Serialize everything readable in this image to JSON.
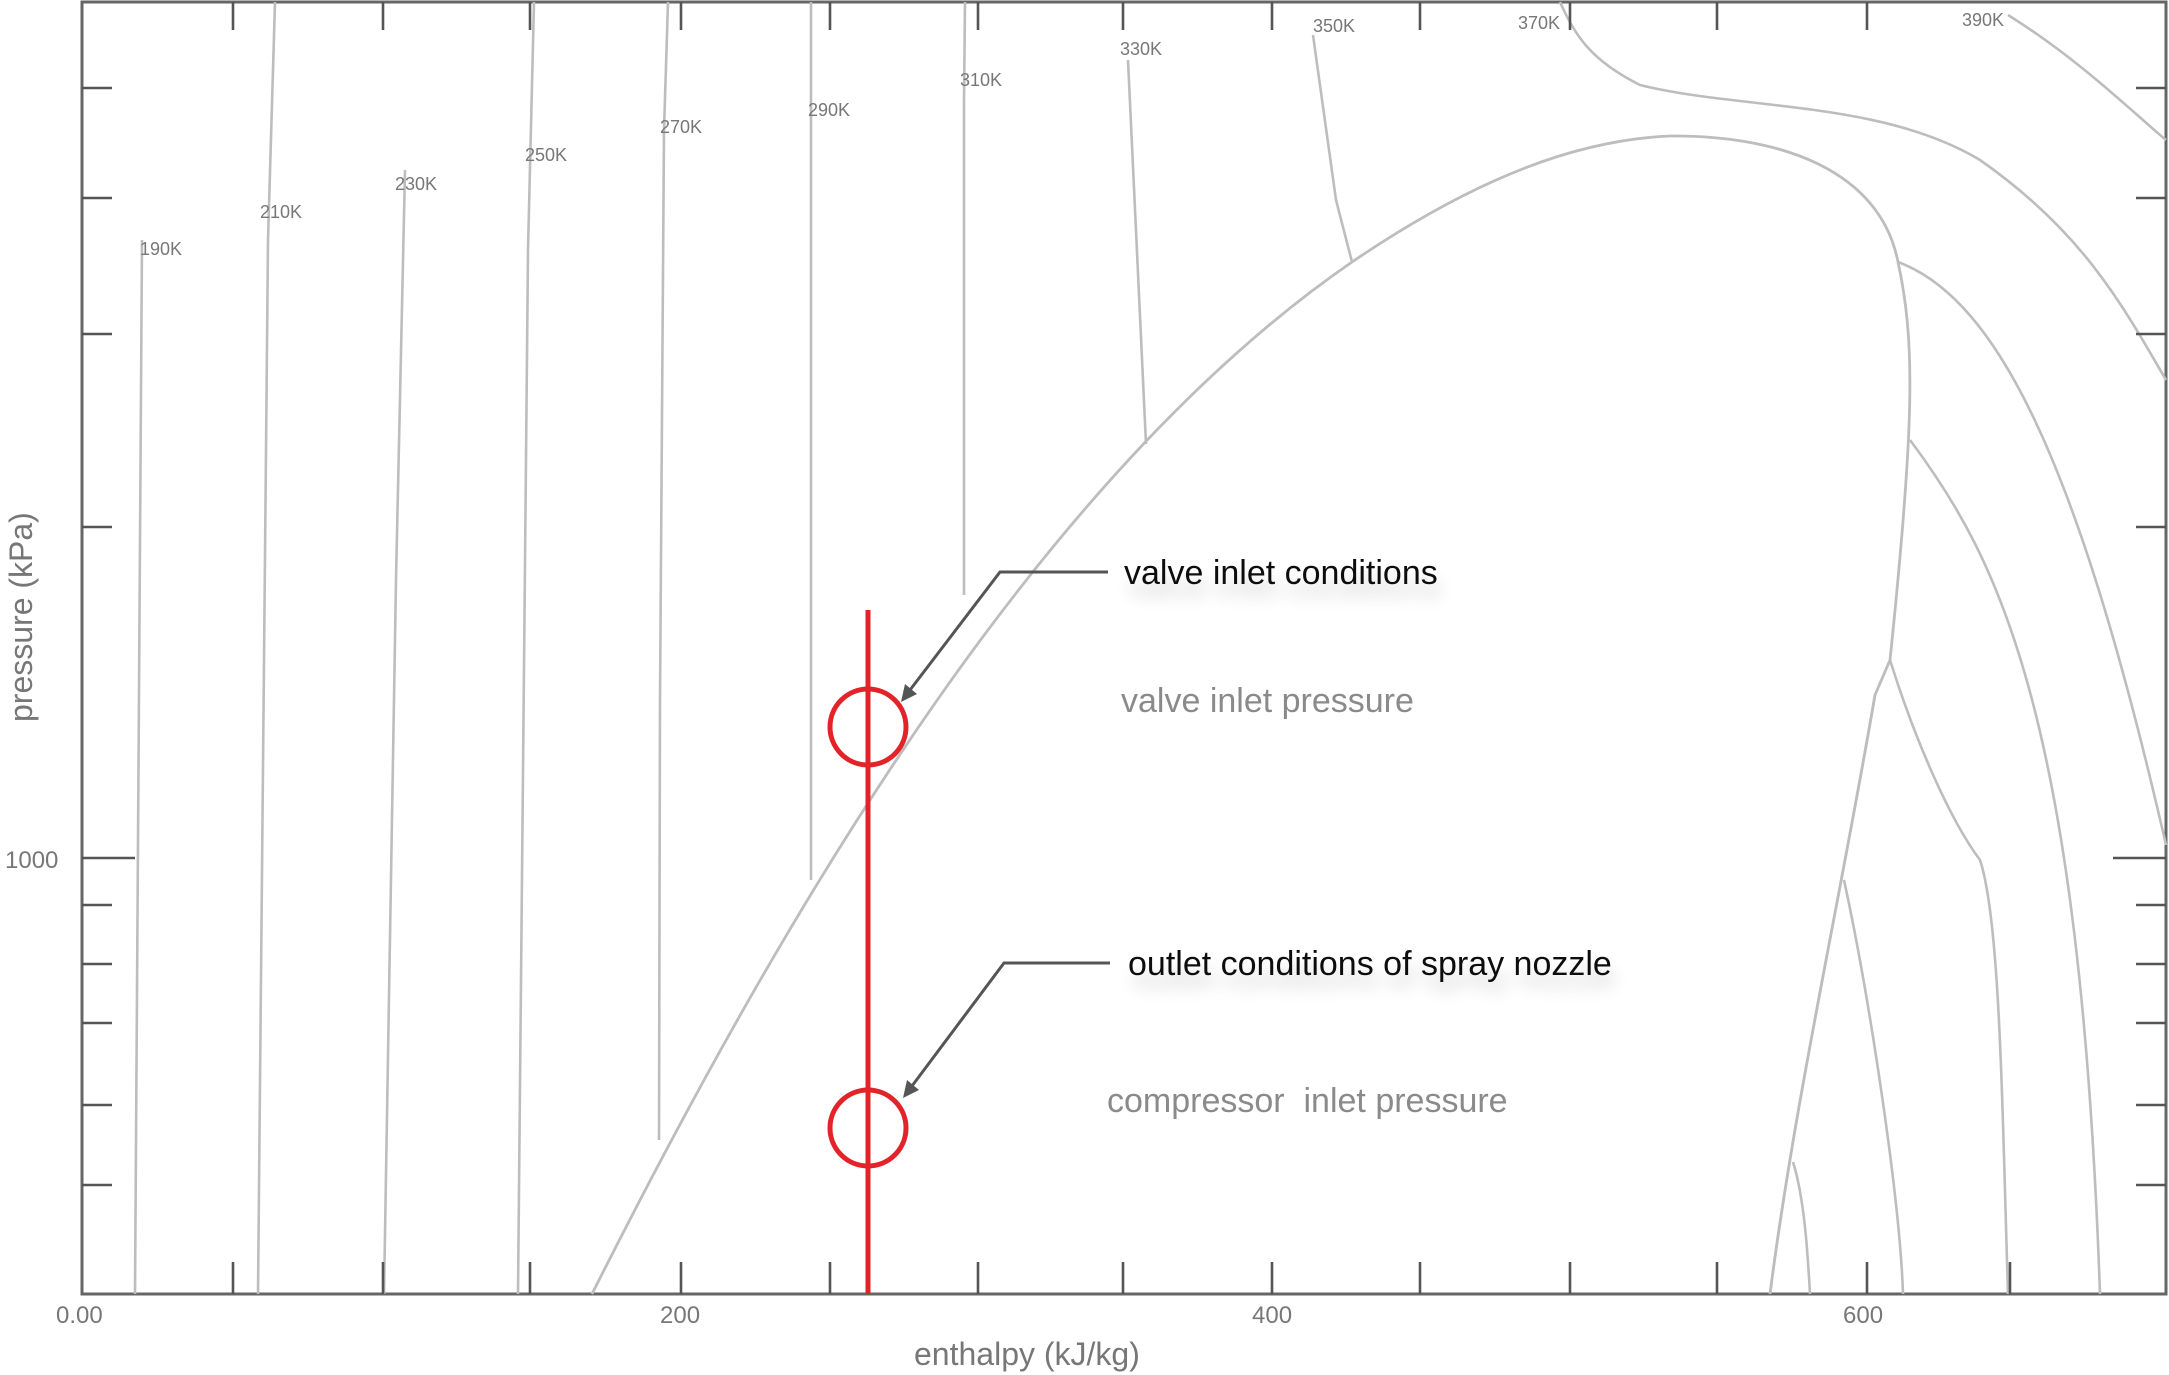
{
  "axes": {
    "x_title": "enthalpy (kJ/kg)",
    "y_title": "pressure (kPa)",
    "x_ticks": [
      "0.00",
      "200",
      "400",
      "600"
    ],
    "y_ticks": [
      "1000"
    ]
  },
  "isotherms": [
    "190K",
    "210K",
    "230K",
    "250K",
    "270K",
    "290K",
    "310K",
    "330K",
    "350K",
    "370K",
    "390K"
  ],
  "pressure_lines": [
    {
      "label": "valve inlet pressure"
    },
    {
      "label": "compressor  inlet pressure"
    }
  ],
  "callouts": [
    {
      "label": "valve inlet conditions"
    },
    {
      "label": "outlet conditions of spray nozzle"
    }
  ],
  "colors": {
    "pressure_line": "#0aa14f",
    "process_line": "#e2232a",
    "isotherm": "#bdbdbd",
    "frame": "#666666"
  }
}
